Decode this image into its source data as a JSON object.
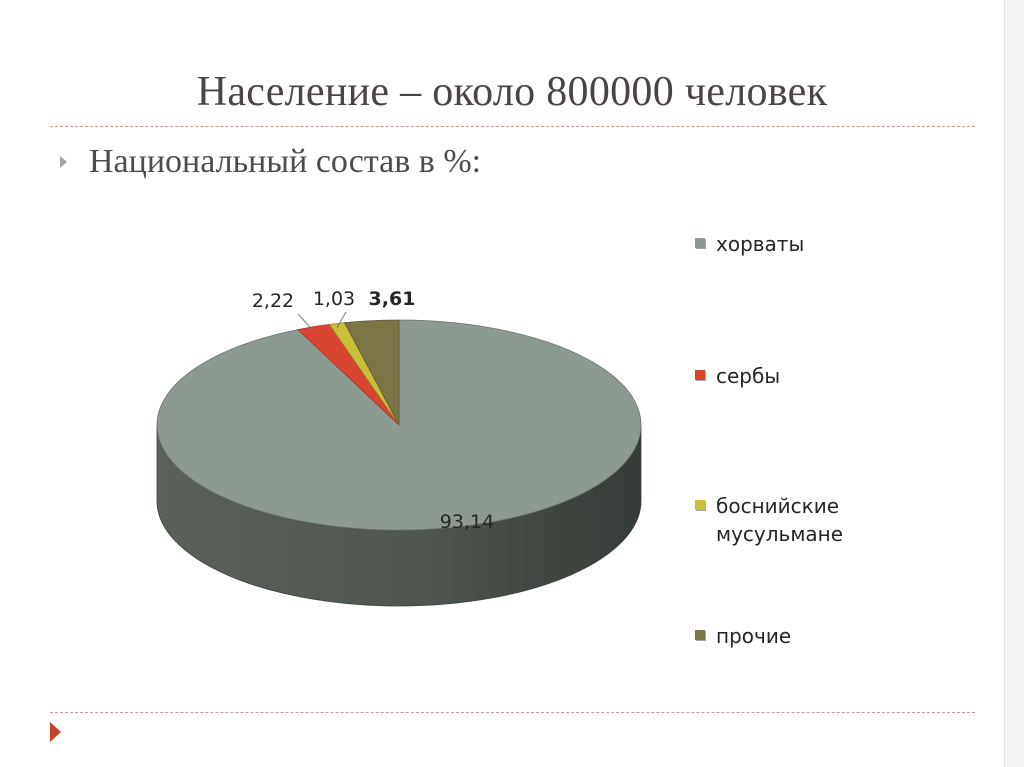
{
  "slide": {
    "title": "Население – около 800000 человек",
    "bullet": "Национальный состав в %:"
  },
  "chart_data": {
    "type": "pie",
    "style": "3d",
    "title": "",
    "legend_position": "right",
    "slices": [
      {
        "label": "хорваты",
        "value": 93.14,
        "display": "93,14",
        "color": "#8c9a92"
      },
      {
        "label": "сербы",
        "value": 2.22,
        "display": "2,22",
        "color": "#d94530"
      },
      {
        "label": "боснийские мусульмане",
        "value": 1.03,
        "display": "1,03",
        "color": "#c9bf3a"
      },
      {
        "label": "прочие",
        "value": 3.61,
        "display": "3,61",
        "color": "#7c7646"
      }
    ]
  }
}
